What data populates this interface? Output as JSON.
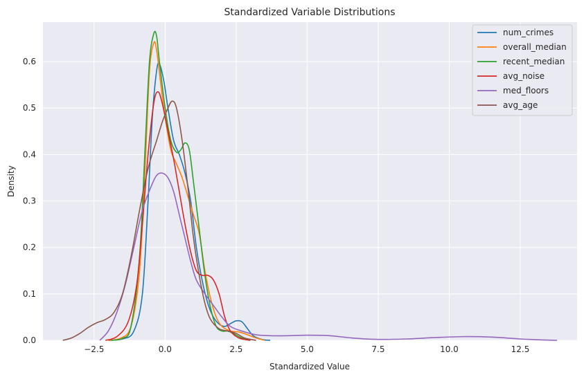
{
  "chart_data": {
    "type": "line",
    "title": "Standardized Variable Distributions",
    "xlabel": "Standardized Value",
    "ylabel": "Density",
    "xlim": [
      -4.3,
      14.5
    ],
    "ylim": [
      0,
      0.685
    ],
    "xticks": [
      -2.5,
      0.0,
      2.5,
      5.0,
      7.5,
      10.0,
      12.5
    ],
    "xtick_labels": [
      "−2.5",
      "0.0",
      "2.5",
      "5.0",
      "7.5",
      "10.0",
      "12.5"
    ],
    "yticks": [
      0.0,
      0.1,
      0.2,
      0.3,
      0.4,
      0.5,
      0.6
    ],
    "ytick_labels": [
      "0.0",
      "0.1",
      "0.2",
      "0.3",
      "0.4",
      "0.5",
      "0.6"
    ],
    "grid": true,
    "background": "#eaeaf2",
    "legend_position": "top-right",
    "series": [
      {
        "name": "num_crimes",
        "color": "#1f77b4",
        "points": [
          [
            -2.0,
            0.0
          ],
          [
            -1.5,
            0.003
          ],
          [
            -1.1,
            0.02
          ],
          [
            -0.8,
            0.1
          ],
          [
            -0.6,
            0.3
          ],
          [
            -0.45,
            0.48
          ],
          [
            -0.3,
            0.58
          ],
          [
            -0.2,
            0.595
          ],
          [
            -0.05,
            0.56
          ],
          [
            0.1,
            0.5
          ],
          [
            0.3,
            0.43
          ],
          [
            0.5,
            0.4
          ],
          [
            0.7,
            0.36
          ],
          [
            0.9,
            0.3
          ],
          [
            1.1,
            0.2
          ],
          [
            1.3,
            0.13
          ],
          [
            1.5,
            0.08
          ],
          [
            1.7,
            0.05
          ],
          [
            1.9,
            0.035
          ],
          [
            2.1,
            0.03
          ],
          [
            2.3,
            0.036
          ],
          [
            2.5,
            0.042
          ],
          [
            2.7,
            0.04
          ],
          [
            2.9,
            0.025
          ],
          [
            3.1,
            0.01
          ],
          [
            3.4,
            0.002
          ],
          [
            3.7,
            0.0
          ]
        ]
      },
      {
        "name": "overall_median",
        "color": "#ff7f0e",
        "points": [
          [
            -2.0,
            0.0
          ],
          [
            -1.6,
            0.004
          ],
          [
            -1.2,
            0.03
          ],
          [
            -0.9,
            0.15
          ],
          [
            -0.7,
            0.38
          ],
          [
            -0.55,
            0.58
          ],
          [
            -0.4,
            0.64
          ],
          [
            -0.3,
            0.625
          ],
          [
            -0.15,
            0.55
          ],
          [
            0.0,
            0.48
          ],
          [
            0.2,
            0.41
          ],
          [
            0.4,
            0.38
          ],
          [
            0.6,
            0.35
          ],
          [
            0.8,
            0.31
          ],
          [
            1.0,
            0.27
          ],
          [
            1.2,
            0.23
          ],
          [
            1.4,
            0.15
          ],
          [
            1.6,
            0.09
          ],
          [
            1.8,
            0.05
          ],
          [
            2.0,
            0.03
          ],
          [
            2.3,
            0.02
          ],
          [
            2.6,
            0.018
          ],
          [
            2.9,
            0.012
          ],
          [
            3.2,
            0.005
          ],
          [
            3.5,
            0.0
          ]
        ]
      },
      {
        "name": "recent_median",
        "color": "#2ca02c",
        "points": [
          [
            -1.9,
            0.0
          ],
          [
            -1.5,
            0.004
          ],
          [
            -1.2,
            0.03
          ],
          [
            -0.9,
            0.18
          ],
          [
            -0.7,
            0.42
          ],
          [
            -0.55,
            0.6
          ],
          [
            -0.4,
            0.66
          ],
          [
            -0.3,
            0.655
          ],
          [
            -0.2,
            0.6
          ],
          [
            0.0,
            0.5
          ],
          [
            0.2,
            0.43
          ],
          [
            0.4,
            0.405
          ],
          [
            0.55,
            0.41
          ],
          [
            0.7,
            0.425
          ],
          [
            0.85,
            0.41
          ],
          [
            1.0,
            0.34
          ],
          [
            1.2,
            0.24
          ],
          [
            1.4,
            0.14
          ],
          [
            1.6,
            0.07
          ],
          [
            1.8,
            0.03
          ],
          [
            2.0,
            0.02
          ],
          [
            2.2,
            0.02
          ],
          [
            2.4,
            0.015
          ],
          [
            2.7,
            0.005
          ],
          [
            3.0,
            0.0
          ]
        ]
      },
      {
        "name": "avg_noise",
        "color": "#d62728",
        "points": [
          [
            -2.1,
            0.0
          ],
          [
            -1.7,
            0.008
          ],
          [
            -1.3,
            0.04
          ],
          [
            -1.0,
            0.12
          ],
          [
            -0.8,
            0.25
          ],
          [
            -0.6,
            0.4
          ],
          [
            -0.4,
            0.51
          ],
          [
            -0.25,
            0.535
          ],
          [
            -0.1,
            0.51
          ],
          [
            0.1,
            0.45
          ],
          [
            0.3,
            0.39
          ],
          [
            0.5,
            0.32
          ],
          [
            0.7,
            0.25
          ],
          [
            0.9,
            0.19
          ],
          [
            1.1,
            0.15
          ],
          [
            1.3,
            0.14
          ],
          [
            1.5,
            0.14
          ],
          [
            1.7,
            0.13
          ],
          [
            1.9,
            0.1
          ],
          [
            2.1,
            0.05
          ],
          [
            2.3,
            0.02
          ],
          [
            2.6,
            0.005
          ],
          [
            3.0,
            0.0
          ]
        ]
      },
      {
        "name": "med_floors",
        "color": "#9467bd",
        "points": [
          [
            -2.3,
            0.0
          ],
          [
            -2.0,
            0.02
          ],
          [
            -1.7,
            0.06
          ],
          [
            -1.4,
            0.12
          ],
          [
            -1.1,
            0.2
          ],
          [
            -0.8,
            0.28
          ],
          [
            -0.5,
            0.33
          ],
          [
            -0.3,
            0.355
          ],
          [
            -0.1,
            0.36
          ],
          [
            0.1,
            0.35
          ],
          [
            0.3,
            0.32
          ],
          [
            0.5,
            0.27
          ],
          [
            0.7,
            0.22
          ],
          [
            0.9,
            0.17
          ],
          [
            1.1,
            0.13
          ],
          [
            1.4,
            0.1
          ],
          [
            1.7,
            0.075
          ],
          [
            2.0,
            0.05
          ],
          [
            2.3,
            0.03
          ],
          [
            2.7,
            0.02
          ],
          [
            3.2,
            0.012
          ],
          [
            3.7,
            0.01
          ],
          [
            4.3,
            0.01
          ],
          [
            5.0,
            0.011
          ],
          [
            5.8,
            0.01
          ],
          [
            6.6,
            0.005
          ],
          [
            7.5,
            0.002
          ],
          [
            8.5,
            0.003
          ],
          [
            9.5,
            0.006
          ],
          [
            10.5,
            0.008
          ],
          [
            11.5,
            0.007
          ],
          [
            12.5,
            0.003
          ],
          [
            13.2,
            0.001
          ],
          [
            13.8,
            0.0
          ]
        ]
      },
      {
        "name": "avg_age",
        "color": "#8c564b",
        "points": [
          [
            -3.6,
            0.0
          ],
          [
            -3.3,
            0.005
          ],
          [
            -3.0,
            0.015
          ],
          [
            -2.7,
            0.028
          ],
          [
            -2.4,
            0.038
          ],
          [
            -2.1,
            0.045
          ],
          [
            -1.8,
            0.06
          ],
          [
            -1.5,
            0.1
          ],
          [
            -1.2,
            0.18
          ],
          [
            -0.9,
            0.28
          ],
          [
            -0.6,
            0.37
          ],
          [
            -0.3,
            0.43
          ],
          [
            -0.1,
            0.47
          ],
          [
            0.1,
            0.5
          ],
          [
            0.25,
            0.515
          ],
          [
            0.4,
            0.5
          ],
          [
            0.6,
            0.43
          ],
          [
            0.8,
            0.33
          ],
          [
            1.0,
            0.22
          ],
          [
            1.2,
            0.14
          ],
          [
            1.4,
            0.08
          ],
          [
            1.6,
            0.045
          ],
          [
            1.9,
            0.025
          ],
          [
            2.2,
            0.02
          ],
          [
            2.5,
            0.015
          ],
          [
            2.8,
            0.005
          ],
          [
            3.2,
            0.0
          ]
        ]
      }
    ]
  }
}
